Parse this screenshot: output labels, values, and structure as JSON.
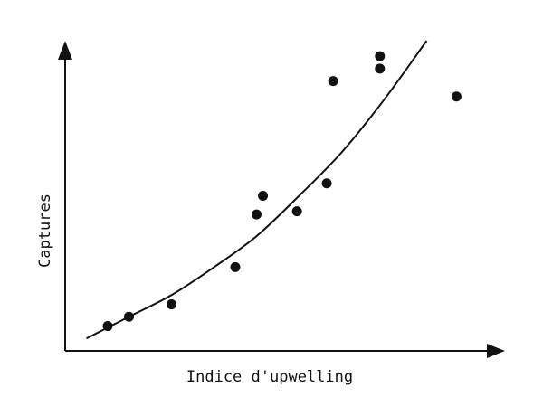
{
  "chart_data": {
    "type": "scatter",
    "xlabel": "Indice d'upwelling",
    "ylabel": "Captures",
    "xlim": [
      0,
      100
    ],
    "ylim": [
      0,
      100
    ],
    "grid": false,
    "ticks": false,
    "colors": {
      "ink": "#111111",
      "background": "#ffffff"
    },
    "points": [
      {
        "x": 10,
        "y": 8
      },
      {
        "x": 15,
        "y": 11
      },
      {
        "x": 25,
        "y": 15
      },
      {
        "x": 40,
        "y": 27
      },
      {
        "x": 45,
        "y": 44
      },
      {
        "x": 46.5,
        "y": 50
      },
      {
        "x": 54.5,
        "y": 45
      },
      {
        "x": 61.5,
        "y": 54
      },
      {
        "x": 63,
        "y": 87
      },
      {
        "x": 74,
        "y": 91
      },
      {
        "x": 74,
        "y": 95
      },
      {
        "x": 92,
        "y": 82
      }
    ],
    "trend": [
      {
        "x": 5,
        "y": 4
      },
      {
        "x": 15,
        "y": 11
      },
      {
        "x": 25,
        "y": 18
      },
      {
        "x": 35,
        "y": 27
      },
      {
        "x": 45,
        "y": 37
      },
      {
        "x": 55,
        "y": 50
      },
      {
        "x": 65,
        "y": 64
      },
      {
        "x": 75,
        "y": 81
      },
      {
        "x": 85,
        "y": 100
      }
    ]
  }
}
